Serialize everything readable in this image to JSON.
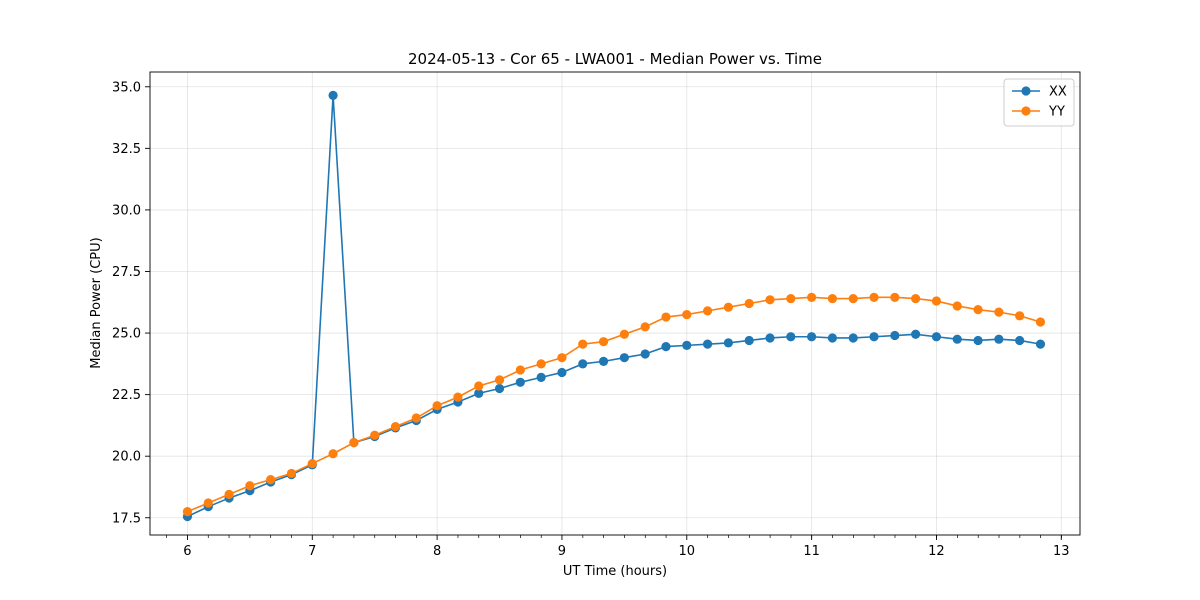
{
  "chart_data": {
    "type": "line",
    "title": "2024-05-13 - Cor 65 - LWA001 - Median Power vs. Time",
    "xlabel": "UT Time (hours)",
    "ylabel": "Median Power (CPU)",
    "xlim": [
      5.7,
      13.15
    ],
    "ylim": [
      16.8,
      35.6
    ],
    "xticks": [
      6,
      7,
      8,
      9,
      10,
      11,
      12,
      13
    ],
    "yticks": [
      17.5,
      20.0,
      22.5,
      25.0,
      27.5,
      30.0,
      32.5,
      35.0
    ],
    "ytick_labels": [
      "17.5",
      "20.0",
      "22.5",
      "25.0",
      "27.5",
      "30.0",
      "32.5",
      "35.0"
    ],
    "x_minor_step": 0.1667,
    "grid": true,
    "legend_position": "top-right",
    "x": [
      6.0,
      6.1667,
      6.3333,
      6.5,
      6.6667,
      6.8333,
      7.0,
      7.1667,
      7.3333,
      7.5,
      7.6667,
      7.8333,
      8.0,
      8.1667,
      8.3333,
      8.5,
      8.6667,
      8.8333,
      9.0,
      9.1667,
      9.3333,
      9.5,
      9.6667,
      9.8333,
      10.0,
      10.1667,
      10.3333,
      10.5,
      10.6667,
      10.8333,
      11.0,
      11.1667,
      11.3333,
      11.5,
      11.6667,
      11.8333,
      12.0,
      12.1667,
      12.3333,
      12.5,
      12.6667,
      12.8333
    ],
    "series": [
      {
        "name": "XX",
        "color": "#1f77b4",
        "values": [
          17.55,
          17.95,
          18.3,
          18.6,
          18.95,
          19.25,
          19.65,
          34.65,
          20.55,
          20.8,
          21.15,
          21.45,
          21.9,
          22.2,
          22.55,
          22.75,
          23.0,
          23.2,
          23.4,
          23.75,
          23.85,
          24.0,
          24.15,
          24.45,
          24.5,
          24.55,
          24.6,
          24.7,
          24.8,
          24.85,
          24.85,
          24.8,
          24.8,
          24.85,
          24.9,
          24.95,
          24.85,
          24.75,
          24.7,
          24.75,
          24.7,
          24.55
        ]
      },
      {
        "name": "YY",
        "color": "#ff7f0e",
        "values": [
          17.75,
          18.1,
          18.45,
          18.8,
          19.05,
          19.3,
          19.7,
          20.1,
          20.55,
          20.85,
          21.2,
          21.55,
          22.05,
          22.4,
          22.85,
          23.1,
          23.5,
          23.75,
          24.0,
          24.55,
          24.65,
          24.95,
          25.25,
          25.65,
          25.75,
          25.9,
          26.05,
          26.2,
          26.35,
          26.4,
          26.45,
          26.4,
          26.4,
          26.45,
          26.45,
          26.4,
          26.3,
          26.1,
          25.95,
          25.85,
          25.7,
          25.45
        ]
      }
    ]
  }
}
